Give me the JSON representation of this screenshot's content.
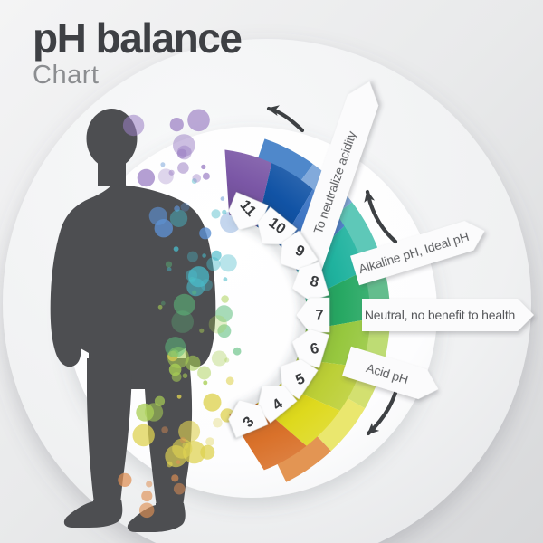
{
  "title": {
    "main": "pH balance",
    "subtitle": "Chart"
  },
  "annotations": {
    "neutralize": "To neutralize acidity",
    "alkaline": "Alkaline pH, Ideal pH",
    "neutral": "Neutral, no benefit to health",
    "acid": "Acid pH"
  },
  "chart_data": {
    "type": "pie",
    "variant": "half-ring pH gauge, opening left, pH 3 (bottom) to pH 11 (top)",
    "title": "pH balance Chart",
    "categories": [
      "11",
      "10",
      "9",
      "8",
      "7",
      "6",
      "5",
      "4",
      "3"
    ],
    "values": [
      1,
      1,
      1,
      1,
      1,
      1,
      1,
      1,
      1
    ],
    "segments": [
      {
        "ph": "11",
        "color": "#7b57a6",
        "flap": "#9d7fc2"
      },
      {
        "ph": "10",
        "color": "#1153a5",
        "flap": "#4f88cb"
      },
      {
        "ph": "9",
        "color": "#4077c5",
        "flap": "#82aadb"
      },
      {
        "ph": "8",
        "color": "#1fb29e",
        "flap": "#5ec8b8"
      },
      {
        "ph": "7",
        "color": "#27a863",
        "flap": "#63bd8d"
      },
      {
        "ph": "6",
        "color": "#96c73e",
        "flap": "#bedc74"
      },
      {
        "ph": "5",
        "color": "#bccf36",
        "flap": "#d3e070"
      },
      {
        "ph": "4",
        "color": "#ded91d",
        "flap": "#eae76e"
      },
      {
        "ph": "3",
        "color": "#d9712a",
        "flap": "#e39553"
      }
    ],
    "zones": [
      {
        "label": "Alkaline pH, Ideal pH",
        "ph_range": "8-11"
      },
      {
        "label": "Neutral, no benefit to health",
        "ph_range": "7"
      },
      {
        "label": "Acid pH",
        "ph_range": "3-6"
      }
    ],
    "direction_note": "To neutralize acidity",
    "legend_position": "right",
    "grid": false
  },
  "palette": {
    "background_top": "#f4f4f5",
    "background_bottom": "#d7d8da",
    "silhouette": "#4d4e51",
    "title_text": "#3e4044",
    "subtitle_text": "#8b8d90",
    "ribbon_fill": "#fbfbfc",
    "ribbon_text": "#55575a",
    "arrow": "#3d4043",
    "tag_number": "#393b3e",
    "dots": [
      "#9b7fc4",
      "#5e91d2",
      "#49b9c8",
      "#5cbd7c",
      "#a9cf55",
      "#ded252",
      "#df9055"
    ]
  },
  "icons": {
    "arrow_up_left": "curved arrow pointing up-left (toward pH 11)",
    "arrow_up": "curved arrow pointing up (toward alkaline)",
    "arrow_down_left": "curved arrow pointing down-left (toward pH 3)"
  }
}
